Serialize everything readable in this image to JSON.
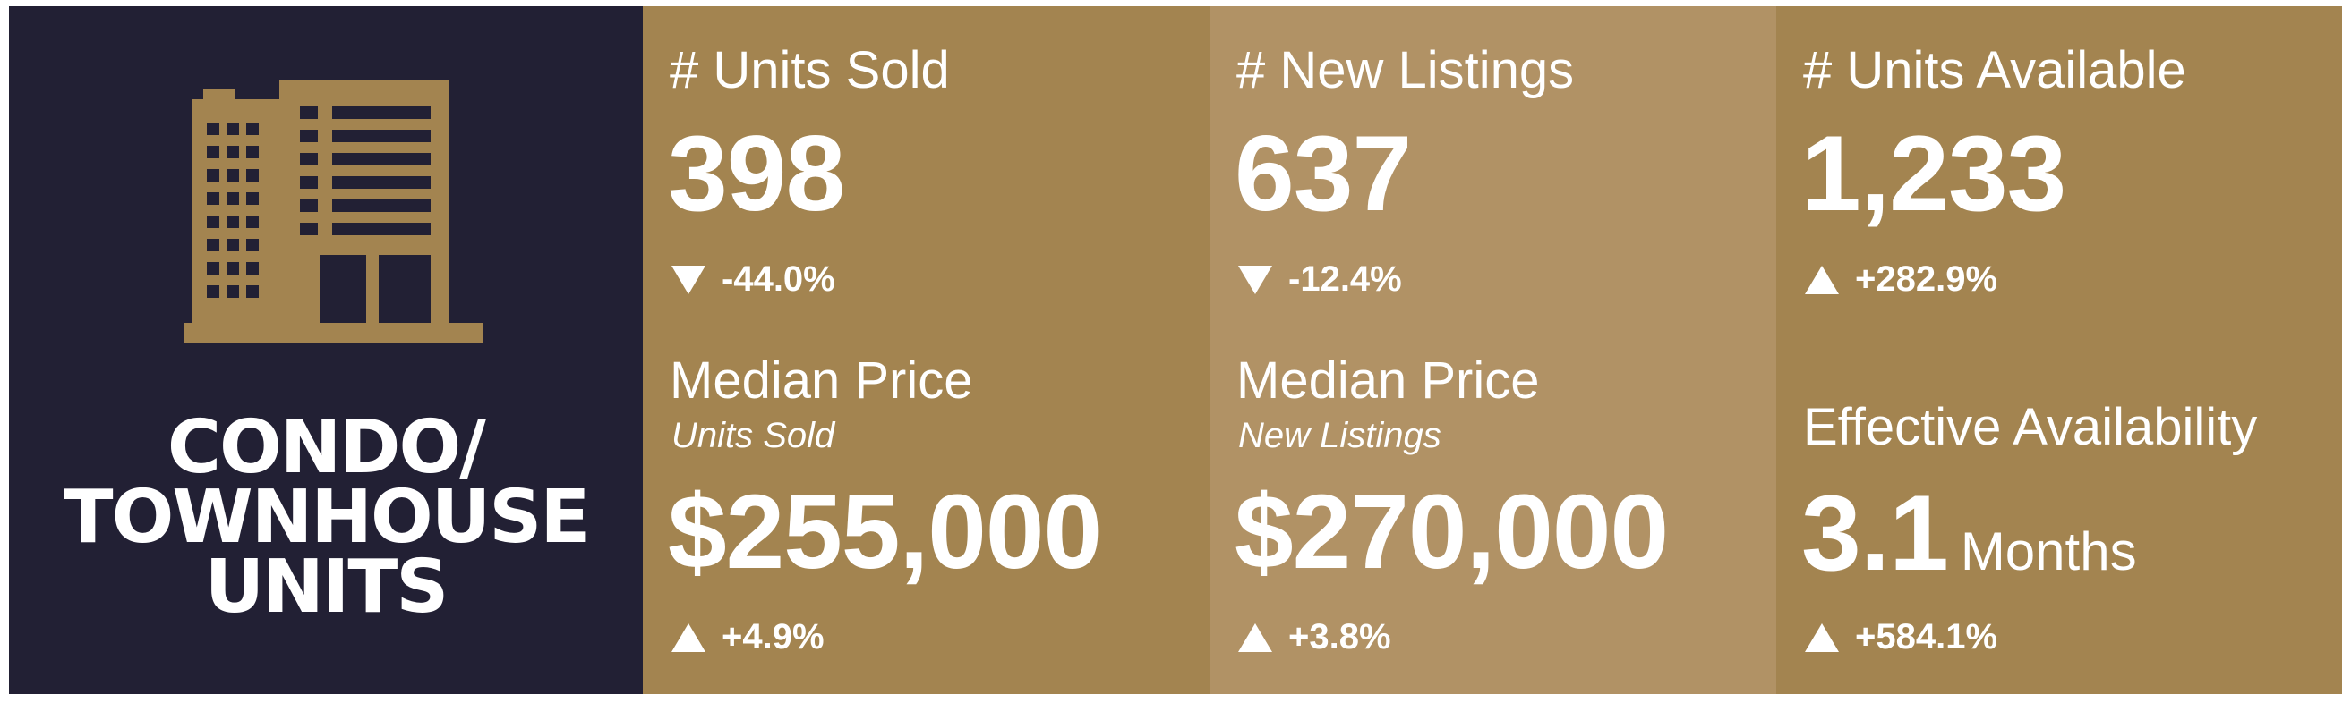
{
  "brand": {
    "icon": "building-icon",
    "title_line1": "CONDO/",
    "title_line2": "TOWNHOUSE",
    "title_line3": "UNITS",
    "panel_color": "#222034",
    "icon_color": "#a38450"
  },
  "columns": [
    {
      "top": {
        "label": "# Units Sold",
        "value": "398",
        "change": "-44.0%",
        "direction": "down"
      },
      "bottom": {
        "label": "Median Price",
        "sublabel": "Units Sold",
        "value": "$255,000",
        "change": "+4.9%",
        "direction": "up"
      },
      "color": "#a38450"
    },
    {
      "top": {
        "label": "# New Listings",
        "value": "637",
        "change": "-12.4%",
        "direction": "down"
      },
      "bottom": {
        "label": "Median Price",
        "sublabel": "New Listings",
        "value": "$270,000",
        "change": "+3.8%",
        "direction": "up"
      },
      "color": "#b19265"
    },
    {
      "top": {
        "label": "# Units Available",
        "value": "1,233",
        "change": "+282.9%",
        "direction": "up"
      },
      "bottom": {
        "label": "Effective Availability",
        "value": "3.1",
        "unit": "Months",
        "change": "+584.1%",
        "direction": "up"
      },
      "color": "#a38450"
    }
  ]
}
